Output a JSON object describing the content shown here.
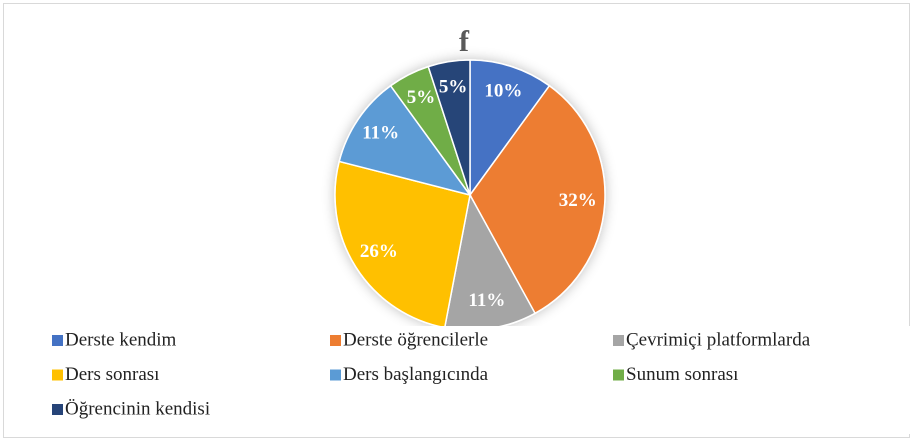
{
  "chart_data": {
    "type": "pie",
    "title": "f",
    "categories": [
      "Derste kendim",
      "Derste öğrencilerle",
      "Çevrimiçi platformlarda",
      "Ders sonrası",
      "Ders başlangıcında",
      "Sunum sonrası",
      "Öğrencinin kendisi"
    ],
    "values": [
      10,
      32,
      11,
      26,
      11,
      5,
      5
    ],
    "value_labels": [
      "10%",
      "32%",
      "11%",
      "26%",
      "11%",
      "5%",
      "5%"
    ],
    "colors": [
      "#4472c4",
      "#ed7d31",
      "#a5a5a5",
      "#ffc000",
      "#5b9bd5",
      "#70ad47",
      "#264478"
    ],
    "legend": "bottom"
  }
}
